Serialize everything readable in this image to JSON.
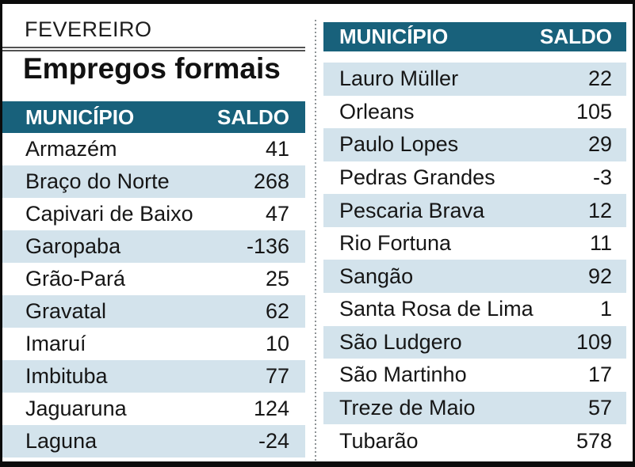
{
  "chart_data": {
    "type": "table",
    "month_label": "FEVEREIRO",
    "title": "Empregos formais",
    "columns": [
      "MUNICÍPIO",
      "SALDO"
    ],
    "left_table": {
      "rows": [
        {
          "municipio": "Armazém",
          "saldo": 41
        },
        {
          "municipio": "Braço do Norte",
          "saldo": 268
        },
        {
          "municipio": "Capivari de Baixo",
          "saldo": 47
        },
        {
          "municipio": "Garopaba",
          "saldo": -136
        },
        {
          "municipio": "Grão-Pará",
          "saldo": 25
        },
        {
          "municipio": "Gravatal",
          "saldo": 62
        },
        {
          "municipio": "Imaruí",
          "saldo": 10
        },
        {
          "municipio": "Imbituba",
          "saldo": 77
        },
        {
          "municipio": "Jaguaruna",
          "saldo": 124
        },
        {
          "municipio": "Laguna",
          "saldo": -24
        }
      ]
    },
    "right_table": {
      "rows": [
        {
          "municipio": "Lauro Müller",
          "saldo": 22
        },
        {
          "municipio": "Orleans",
          "saldo": 105
        },
        {
          "municipio": "Paulo Lopes",
          "saldo": 29
        },
        {
          "municipio": "Pedras Grandes",
          "saldo": -3
        },
        {
          "municipio": "Pescaria Brava",
          "saldo": 12
        },
        {
          "municipio": "Rio Fortuna",
          "saldo": 11
        },
        {
          "municipio": "Sangão",
          "saldo": 92
        },
        {
          "municipio": "Santa Rosa de Lima",
          "saldo": 1
        },
        {
          "municipio": "São Ludgero",
          "saldo": 109
        },
        {
          "municipio": "São Martinho",
          "saldo": 17
        },
        {
          "municipio": "Treze de Maio",
          "saldo": 57
        },
        {
          "municipio": "Tubarão",
          "saldo": 578
        }
      ]
    }
  },
  "colors": {
    "header_bg": "#18617b",
    "row_shaded_bg": "#d3e3ec",
    "frame": "#0b0b0b",
    "divider": "#8e9396",
    "rule": "#525252"
  }
}
